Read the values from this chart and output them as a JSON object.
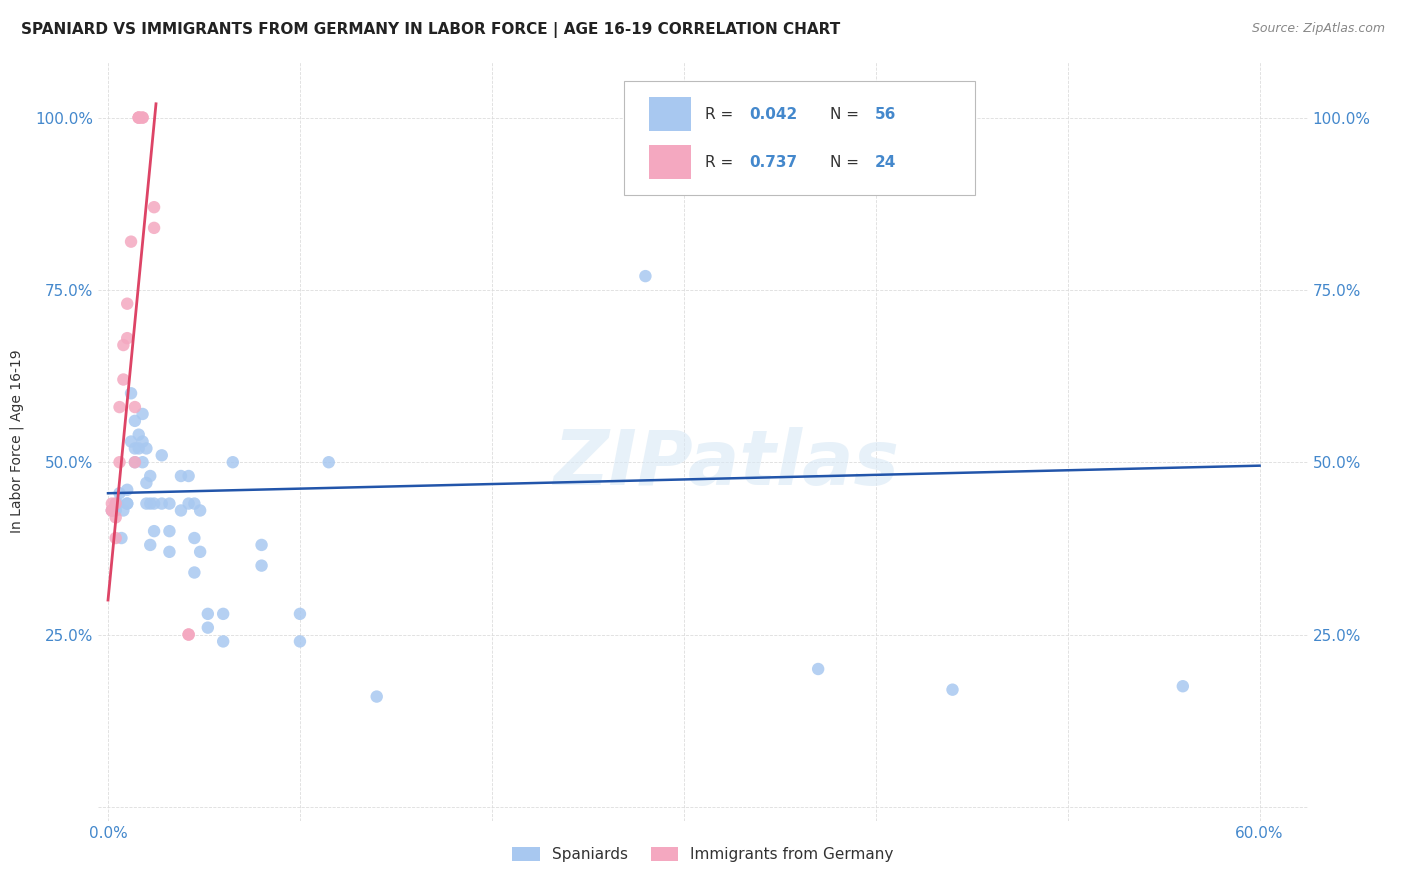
{
  "title": "SPANIARD VS IMMIGRANTS FROM GERMANY IN LABOR FORCE | AGE 16-19 CORRELATION CHART",
  "source": "Source: ZipAtlas.com",
  "ylabel_label": "In Labor Force | Age 16-19",
  "watermark": "ZIPatlas",
  "legend_blue_label": "Spaniards",
  "legend_pink_label": "Immigrants from Germany",
  "blue_color": "#A8C8F0",
  "pink_color": "#F4A8C0",
  "blue_line_color": "#2255AA",
  "pink_line_color": "#DD4466",
  "blue_scatter": [
    [
      0.002,
      0.43
    ],
    [
      0.004,
      0.44
    ],
    [
      0.004,
      0.43
    ],
    [
      0.005,
      0.44
    ],
    [
      0.006,
      0.455
    ],
    [
      0.007,
      0.39
    ],
    [
      0.008,
      0.43
    ],
    [
      0.01,
      0.46
    ],
    [
      0.01,
      0.44
    ],
    [
      0.01,
      0.44
    ],
    [
      0.012,
      0.6
    ],
    [
      0.012,
      0.53
    ],
    [
      0.014,
      0.56
    ],
    [
      0.014,
      0.52
    ],
    [
      0.014,
      0.5
    ],
    [
      0.016,
      0.54
    ],
    [
      0.016,
      0.52
    ],
    [
      0.018,
      0.57
    ],
    [
      0.018,
      0.53
    ],
    [
      0.018,
      0.5
    ],
    [
      0.02,
      0.52
    ],
    [
      0.02,
      0.47
    ],
    [
      0.02,
      0.44
    ],
    [
      0.022,
      0.48
    ],
    [
      0.022,
      0.44
    ],
    [
      0.022,
      0.38
    ],
    [
      0.024,
      0.44
    ],
    [
      0.024,
      0.4
    ],
    [
      0.028,
      0.51
    ],
    [
      0.028,
      0.44
    ],
    [
      0.032,
      0.44
    ],
    [
      0.032,
      0.4
    ],
    [
      0.032,
      0.37
    ],
    [
      0.038,
      0.48
    ],
    [
      0.038,
      0.43
    ],
    [
      0.042,
      0.48
    ],
    [
      0.042,
      0.44
    ],
    [
      0.045,
      0.44
    ],
    [
      0.045,
      0.39
    ],
    [
      0.045,
      0.34
    ],
    [
      0.048,
      0.43
    ],
    [
      0.048,
      0.37
    ],
    [
      0.052,
      0.28
    ],
    [
      0.052,
      0.26
    ],
    [
      0.06,
      0.28
    ],
    [
      0.06,
      0.24
    ],
    [
      0.065,
      0.5
    ],
    [
      0.08,
      0.38
    ],
    [
      0.08,
      0.35
    ],
    [
      0.1,
      0.28
    ],
    [
      0.1,
      0.24
    ],
    [
      0.115,
      0.5
    ],
    [
      0.14,
      0.16
    ],
    [
      0.28,
      0.77
    ],
    [
      0.37,
      0.2
    ],
    [
      0.44,
      0.17
    ],
    [
      0.56,
      0.175
    ]
  ],
  "pink_scatter": [
    [
      0.002,
      0.44
    ],
    [
      0.002,
      0.43
    ],
    [
      0.002,
      0.43
    ],
    [
      0.004,
      0.44
    ],
    [
      0.004,
      0.42
    ],
    [
      0.004,
      0.39
    ],
    [
      0.006,
      0.58
    ],
    [
      0.006,
      0.5
    ],
    [
      0.008,
      0.67
    ],
    [
      0.008,
      0.62
    ],
    [
      0.01,
      0.73
    ],
    [
      0.01,
      0.68
    ],
    [
      0.012,
      0.82
    ],
    [
      0.014,
      0.58
    ],
    [
      0.014,
      0.5
    ],
    [
      0.016,
      1.0
    ],
    [
      0.016,
      1.0
    ],
    [
      0.016,
      1.0
    ],
    [
      0.018,
      1.0
    ],
    [
      0.018,
      1.0
    ],
    [
      0.024,
      0.84
    ],
    [
      0.024,
      0.87
    ],
    [
      0.042,
      0.25
    ],
    [
      0.042,
      0.25
    ]
  ],
  "blue_line_x": [
    0.0,
    0.6
  ],
  "blue_line_y": [
    0.455,
    0.495
  ],
  "pink_line_x": [
    0.0,
    0.025
  ],
  "pink_line_y": [
    0.3,
    1.02
  ],
  "xlim": [
    -0.005,
    0.625
  ],
  "ylim": [
    -0.02,
    1.08
  ],
  "xtick_positions": [
    0.0,
    0.1,
    0.2,
    0.3,
    0.4,
    0.5,
    0.6
  ],
  "xtick_labels": [
    "0.0%",
    "",
    "",
    "",
    "",
    "",
    "60.0%"
  ],
  "ytick_positions": [
    0.0,
    0.25,
    0.5,
    0.75,
    1.0
  ],
  "ytick_labels": [
    "",
    "25.0%",
    "50.0%",
    "75.0%",
    "100.0%"
  ],
  "right_ytick_positions": [
    0.25,
    0.5,
    0.75,
    1.0
  ],
  "right_ytick_labels": [
    "25.0%",
    "50.0%",
    "75.0%",
    "100.0%"
  ],
  "tick_color": "#4488CC",
  "grid_color": "#DDDDDD",
  "title_fontsize": 11,
  "source_fontsize": 9,
  "axis_fontsize": 11,
  "marker_size": 80
}
